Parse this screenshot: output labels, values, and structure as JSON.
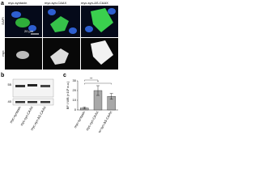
{
  "panel_a": {
    "label": "a",
    "columns": [
      "myc-syntaxin",
      "myc-syn-CAAX",
      "myc-syn-ΔS-CAAX"
    ],
    "rows": [
      "DAPI",
      "myc"
    ],
    "scale_bar": "20 μm"
  },
  "panel_b": {
    "label": "b",
    "markers": [
      "55",
      "40"
    ]
  },
  "chart_data": {
    "type": "bar",
    "label": "c",
    "y_label": "BF / WB (×10³ a.u.)",
    "categories": [
      "myc-syntaxin",
      "myc-syn-CAAX",
      "myc-syn-ΔS-CAAX"
    ],
    "values": [
      2,
      20,
      14
    ],
    "errors": [
      1,
      5,
      3
    ],
    "color": "#a8a8a8",
    "ylim": [
      0,
      30
    ],
    "yticks": [
      0,
      10,
      20,
      30
    ],
    "significance": [
      "**",
      "*"
    ]
  }
}
